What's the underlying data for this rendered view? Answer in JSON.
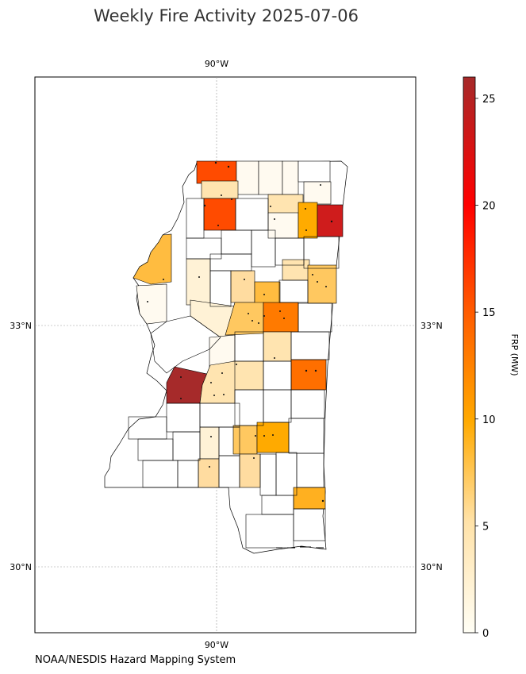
{
  "title": "Weekly Fire Activity 2025-07-06",
  "credit": "NOAA/NESDIS Hazard Mapping System",
  "map": {
    "lon_labels_top": [
      "90°W"
    ],
    "lon_labels_bottom": [
      "90°W"
    ],
    "lat_labels_left": [
      "33°N",
      "30°N"
    ],
    "lat_labels_right": [
      "33°N",
      "30°N"
    ]
  },
  "colorbar": {
    "label": "FRP (MW)",
    "min": 0,
    "max": 26,
    "ticks": [
      "0",
      "5",
      "10",
      "15",
      "20",
      "25"
    ],
    "colors": [
      "#fffef5",
      "#ffe2a8",
      "#ffaa00",
      "#ff5a00",
      "#ff0000",
      "#a62a2a"
    ]
  },
  "chart_data": {
    "type": "choropleth",
    "region": "Mississippi counties",
    "value": "FRP (MW)",
    "counties_frp": [
      12,
      3,
      12,
      22,
      7,
      6,
      6,
      3,
      5,
      6,
      9,
      13,
      26,
      5,
      8,
      5,
      3,
      3,
      11,
      6,
      8,
      5,
      1,
      1,
      1,
      1,
      3,
      2,
      1,
      1
    ]
  }
}
